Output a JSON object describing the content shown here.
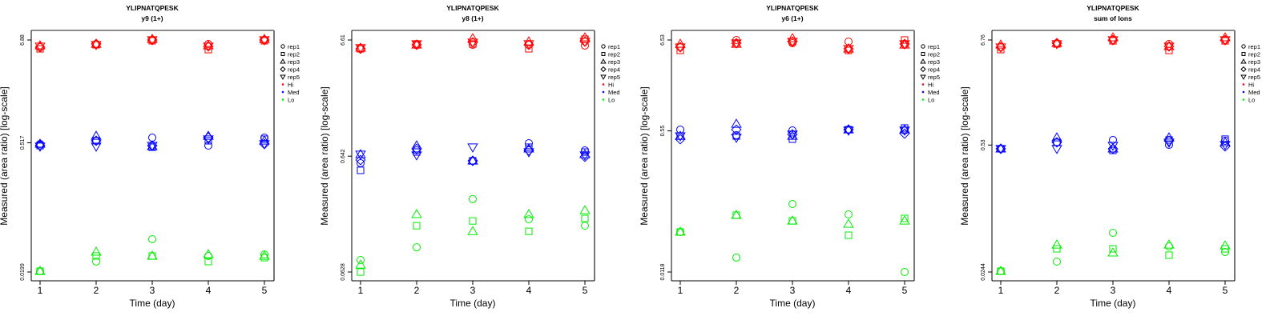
{
  "legend": {
    "shapes": [
      {
        "key": "rep1",
        "label": "rep1",
        "shape": "circle"
      },
      {
        "key": "rep2",
        "label": "rep2",
        "shape": "square"
      },
      {
        "key": "rep3",
        "label": "rep3",
        "shape": "triangle-up"
      },
      {
        "key": "rep4",
        "label": "rep4",
        "shape": "diamond"
      },
      {
        "key": "rep5",
        "label": "rep5",
        "shape": "triangle-down"
      }
    ],
    "groups": [
      {
        "key": "Hi",
        "label": "Hi",
        "color": "#ff0000"
      },
      {
        "key": "Med",
        "label": "Med",
        "color": "#0000ff"
      },
      {
        "key": "Lo",
        "label": "Lo",
        "color": "#00ee00"
      }
    ]
  },
  "chart_data": [
    {
      "type": "scatter",
      "title": "YLIPNATQPESK",
      "subtitle": "y9 (1+)",
      "xlabel": "Time (day)",
      "ylabel": "Measured (area ratio) [log-scale]",
      "yscale": "log",
      "x_ticks": [
        "1",
        "2",
        "3",
        "4",
        "5"
      ],
      "y_ticks": [
        {
          "value": 6.88,
          "label": "6.88"
        },
        {
          "value": 0.517,
          "label": "0.517"
        },
        {
          "value": 0.0199,
          "label": "0.0199"
        }
      ],
      "legend_position": "right",
      "x": [
        1,
        2,
        3,
        4,
        5
      ],
      "series": {
        "Hi": {
          "rep1": [
            5.74,
            6.22,
            6.88,
            6.22,
            6.88
          ],
          "rep2": [
            5.51,
            6.1,
            6.75,
            5.4,
            6.75
          ],
          "rep3": [
            5.97,
            6.22,
            7.02,
            5.97,
            7.02
          ],
          "rep4": [
            5.74,
            6.22,
            6.88,
            5.86,
            6.88
          ],
          "rep5": [
            5.86,
            6.1,
            6.88,
            5.86,
            6.88
          ]
        },
        "Med": {
          "rep1": [
            0.501,
            0.543,
            0.588,
            0.481,
            0.588
          ],
          "rep2": [
            0.481,
            0.543,
            0.462,
            0.543,
            0.565
          ],
          "rep3": [
            0.501,
            0.612,
            0.471,
            0.612,
            0.543
          ],
          "rep4": [
            0.481,
            0.543,
            0.481,
            0.588,
            0.501
          ],
          "rep5": [
            0.471,
            0.471,
            0.481,
            0.565,
            0.501
          ]
        },
        "Lo": {
          "rep1": [
            0.0203,
            0.0259,
            0.0455,
            0.0298,
            0.031
          ],
          "rep2": [
            0.0203,
            0.0298,
            0.0298,
            0.0259,
            0.0286
          ],
          "rep3": [
            0.0203,
            0.033,
            0.0298,
            0.031,
            0.0298
          ]
        }
      }
    },
    {
      "type": "scatter",
      "title": "YLIPNATQPESK",
      "subtitle": "y8 (1+)",
      "xlabel": "Time (day)",
      "ylabel": "Measured (area ratio) [log-scale]",
      "yscale": "log",
      "x_ticks": [
        "1",
        "2",
        "3",
        "4",
        "5"
      ],
      "y_ticks": [
        {
          "value": 6.61,
          "label": "6.61"
        },
        {
          "value": 0.642,
          "label": "0.642"
        },
        {
          "value": 0.0628,
          "label": "0.0628"
        }
      ],
      "legend_position": "right",
      "x": [
        1,
        2,
        3,
        4,
        5
      ],
      "series": {
        "Hi": {
          "rep1": [
            5.54,
            6.1,
            6.0,
            6.0,
            5.91
          ],
          "rep2": [
            5.54,
            6.0,
            6.1,
            5.54,
            6.72
          ],
          "rep3": [
            5.64,
            6.0,
            6.83,
            6.4,
            6.94
          ],
          "rep4": [
            5.54,
            6.0,
            6.3,
            6.0,
            6.4
          ],
          "rep5": [
            5.64,
            6.1,
            6.3,
            6.1,
            6.4
          ]
        },
        "Med": {
          "rep1": [
            0.558,
            0.721,
            0.585,
            0.833,
            0.721
          ],
          "rep2": [
            0.483,
            0.698,
            0.585,
            0.769,
            0.698
          ],
          "rep3": [
            0.665,
            0.794,
            0.585,
            0.745,
            0.665
          ],
          "rep4": [
            0.594,
            0.745,
            0.585,
            0.721,
            0.634
          ],
          "rep5": [
            0.665,
            0.655,
            0.769,
            0.698,
            0.655
          ]
        },
        "Lo": {
          "rep1": [
            0.0799,
            0.103,
            0.271,
            0.181,
            0.159
          ],
          "rep2": [
            0.0628,
            0.159,
            0.175,
            0.142,
            0.184
          ],
          "rep3": [
            0.0726,
            0.2,
            0.142,
            0.2,
            0.216
          ]
        }
      }
    },
    {
      "type": "scatter",
      "title": "YLIPNATQPESK",
      "subtitle": "y6 (1+)",
      "xlabel": "Time (day)",
      "ylabel": "Measured (area ratio) [log-scale]",
      "yscale": "log",
      "x_ticks": [
        "1",
        "2",
        "3",
        "4",
        "5"
      ],
      "y_ticks": [
        {
          "value": 6.53,
          "label": "6.53"
        },
        {
          "value": 0.55,
          "label": "0.55"
        },
        {
          "value": 0.0118,
          "label": "0.0118"
        }
      ],
      "legend_position": "right",
      "x": [
        1,
        2,
        3,
        4,
        5
      ],
      "series": {
        "Hi": {
          "rep1": [
            5.37,
            6.53,
            5.99,
            6.25,
            5.73
          ],
          "rep2": [
            4.92,
            5.86,
            6.25,
            4.92,
            6.53
          ],
          "rep3": [
            5.86,
            5.86,
            6.82,
            5.14,
            5.73
          ],
          "rep4": [
            5.37,
            5.99,
            6.25,
            5.14,
            5.86
          ],
          "rep5": [
            5.37,
            5.99,
            6.25,
            5.14,
            5.86
          ]
        },
        "Med": {
          "rep1": [
            0.569,
            0.489,
            0.557,
            0.569,
            0.557
          ],
          "rep2": [
            0.478,
            0.478,
            0.439,
            0.569,
            0.595
          ],
          "rep3": [
            0.478,
            0.663,
            0.478,
            0.569,
            0.569
          ],
          "rep4": [
            0.439,
            0.569,
            0.5,
            0.569,
            0.511
          ],
          "rep5": [
            0.478,
            0.458,
            0.5,
            0.557,
            0.557
          ]
        },
        "Lo": {
          "rep1": [
            0.0351,
            0.0175,
            0.0751,
            0.0566,
            0.0118
          ],
          "rep2": [
            0.0351,
            0.0554,
            0.0475,
            0.0321,
            0.0508
          ],
          "rep3": [
            0.0351,
            0.0554,
            0.0475,
            0.0436,
            0.0475
          ]
        }
      }
    },
    {
      "type": "scatter",
      "title": "YLIPNATQPESK",
      "subtitle": "sum of Ions",
      "xlabel": "Time (day)",
      "ylabel": "Measured (area ratio) [log-scale]",
      "yscale": "log",
      "x_ticks": [
        "1",
        "2",
        "3",
        "4",
        "5"
      ],
      "y_ticks": [
        {
          "value": 6.76,
          "label": "6.76"
        },
        {
          "value": 0.53,
          "label": "0.53"
        },
        {
          "value": 0.0244,
          "label": "0.0244"
        }
      ],
      "legend_position": "right",
      "x": [
        1,
        2,
        3,
        4,
        5
      ],
      "series": {
        "Hi": {
          "rep1": [
            5.68,
            6.26,
            6.76,
            6.14,
            6.76
          ],
          "rep2": [
            5.36,
            6.14,
            6.62,
            5.25,
            6.62
          ],
          "rep3": [
            6.02,
            6.26,
            7.17,
            5.79,
            7.17
          ],
          "rep4": [
            5.68,
            6.26,
            6.76,
            5.79,
            6.76
          ],
          "rep5": [
            5.68,
            6.14,
            6.76,
            5.79,
            6.76
          ]
        },
        "Med": {
          "rep1": [
            0.484,
            0.565,
            0.599,
            0.533,
            0.587
          ],
          "rep2": [
            0.484,
            0.565,
            0.465,
            0.599,
            0.611
          ],
          "rep3": [
            0.484,
            0.634,
            0.484,
            0.634,
            0.565
          ],
          "rep4": [
            0.484,
            0.565,
            0.484,
            0.587,
            0.513
          ],
          "rep5": [
            0.484,
            0.484,
            0.523,
            0.565,
            0.533
          ]
        },
        "Lo": {
          "rep1": [
            0.0249,
            0.0314,
            0.0631,
            0.0454,
            0.0396
          ],
          "rep2": [
            0.0249,
            0.0428,
            0.0428,
            0.0367,
            0.0428
          ],
          "rep3": [
            0.0249,
            0.0472,
            0.0389,
            0.0472,
            0.0463
          ]
        }
      }
    }
  ]
}
